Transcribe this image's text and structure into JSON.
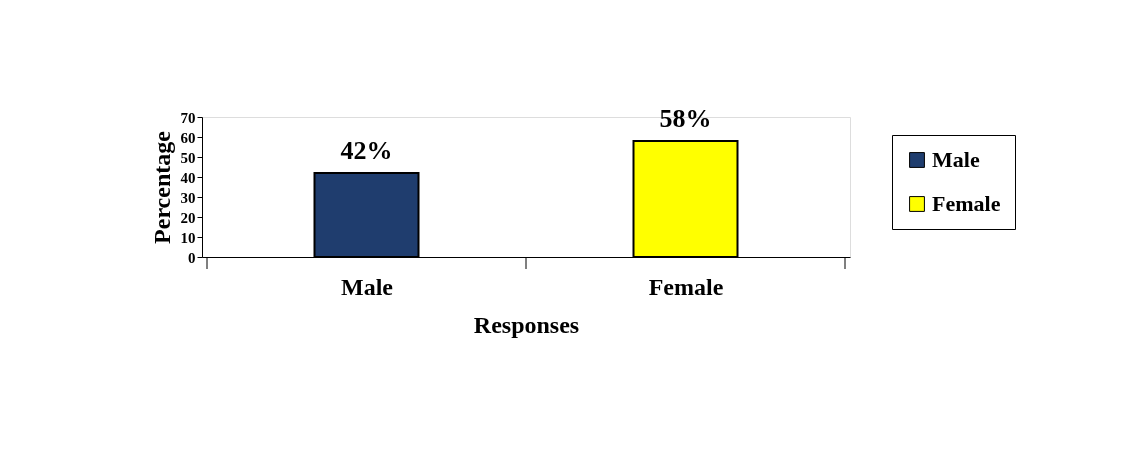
{
  "chart_data": {
    "type": "bar",
    "categories": [
      "Male",
      "Female"
    ],
    "series": [
      {
        "name": "Male",
        "color": "#1f3d6e",
        "values": [
          42,
          null
        ],
        "value_labels": [
          "42%",
          null
        ]
      },
      {
        "name": "Female",
        "color": "#ffff00",
        "values": [
          null,
          58
        ],
        "value_labels": [
          null,
          "58%"
        ]
      }
    ],
    "xlabel": "Responses",
    "ylabel": "Percentage",
    "ylim": [
      0,
      70
    ],
    "yticks": [
      0,
      10,
      20,
      30,
      40,
      50,
      60,
      70
    ],
    "legend": "right",
    "grid": false
  }
}
